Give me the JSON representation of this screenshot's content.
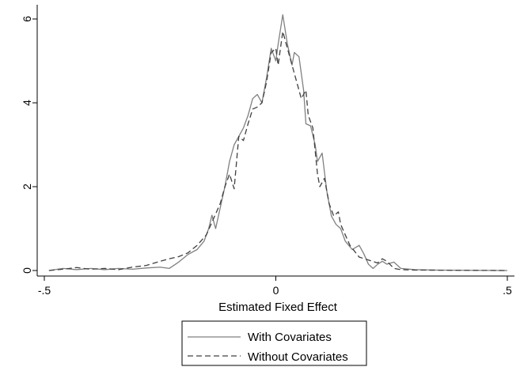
{
  "chart_data": {
    "type": "line",
    "title": "",
    "xlabel": "Estimated Fixed Effect",
    "ylabel": "",
    "xlim": [
      -0.5,
      0.5
    ],
    "ylim": [
      0,
      6.3
    ],
    "grid": false,
    "legend_position": "bottom",
    "x_ticks": [
      {
        "value": -0.5,
        "label": "-.5"
      },
      {
        "value": 0,
        "label": "0"
      },
      {
        "value": 0.5,
        "label": ".5"
      }
    ],
    "y_ticks": [
      {
        "value": 0,
        "label": "0"
      },
      {
        "value": 2,
        "label": "2"
      },
      {
        "value": 4,
        "label": "4"
      },
      {
        "value": 6,
        "label": "6"
      }
    ],
    "series": [
      {
        "name": "With Covariates",
        "color": "#808080",
        "dash": "solid",
        "points": [
          [
            -0.49,
            0.0
          ],
          [
            -0.46,
            0.05
          ],
          [
            -0.43,
            0.02
          ],
          [
            -0.4,
            0.05
          ],
          [
            -0.37,
            0.02
          ],
          [
            -0.34,
            0.05
          ],
          [
            -0.31,
            0.03
          ],
          [
            -0.28,
            0.06
          ],
          [
            -0.25,
            0.08
          ],
          [
            -0.23,
            0.05
          ],
          [
            -0.21,
            0.2
          ],
          [
            -0.19,
            0.38
          ],
          [
            -0.17,
            0.5
          ],
          [
            -0.155,
            0.7
          ],
          [
            -0.145,
            1.0
          ],
          [
            -0.138,
            1.32
          ],
          [
            -0.13,
            1.0
          ],
          [
            -0.12,
            1.5
          ],
          [
            -0.11,
            2.0
          ],
          [
            -0.1,
            2.6
          ],
          [
            -0.09,
            3.0
          ],
          [
            -0.08,
            3.2
          ],
          [
            -0.07,
            3.4
          ],
          [
            -0.06,
            3.7
          ],
          [
            -0.05,
            4.1
          ],
          [
            -0.04,
            4.2
          ],
          [
            -0.03,
            4.0
          ],
          [
            -0.02,
            4.6
          ],
          [
            -0.01,
            5.3
          ],
          [
            0.0,
            5.0
          ],
          [
            0.005,
            5.4
          ],
          [
            0.015,
            6.1
          ],
          [
            0.025,
            5.4
          ],
          [
            0.035,
            4.9
          ],
          [
            0.04,
            5.2
          ],
          [
            0.05,
            5.1
          ],
          [
            0.06,
            4.3
          ],
          [
            0.065,
            3.5
          ],
          [
            0.075,
            3.45
          ],
          [
            0.085,
            3.0
          ],
          [
            0.09,
            2.6
          ],
          [
            0.1,
            2.8
          ],
          [
            0.11,
            1.9
          ],
          [
            0.12,
            1.3
          ],
          [
            0.13,
            1.1
          ],
          [
            0.14,
            1.0
          ],
          [
            0.15,
            0.7
          ],
          [
            0.165,
            0.5
          ],
          [
            0.18,
            0.6
          ],
          [
            0.19,
            0.4
          ],
          [
            0.2,
            0.15
          ],
          [
            0.21,
            0.05
          ],
          [
            0.22,
            0.15
          ],
          [
            0.23,
            0.22
          ],
          [
            0.24,
            0.15
          ],
          [
            0.255,
            0.2
          ],
          [
            0.27,
            0.05
          ],
          [
            0.3,
            0.02
          ],
          [
            0.35,
            0.01
          ],
          [
            0.5,
            0.0
          ]
        ]
      },
      {
        "name": "Without Covariates",
        "color": "#404040",
        "dash": "dashed",
        "points": [
          [
            -0.49,
            0.0
          ],
          [
            -0.46,
            0.03
          ],
          [
            -0.43,
            0.07
          ],
          [
            -0.4,
            0.03
          ],
          [
            -0.37,
            0.05
          ],
          [
            -0.34,
            0.02
          ],
          [
            -0.31,
            0.08
          ],
          [
            -0.28,
            0.12
          ],
          [
            -0.25,
            0.22
          ],
          [
            -0.23,
            0.28
          ],
          [
            -0.21,
            0.33
          ],
          [
            -0.19,
            0.42
          ],
          [
            -0.17,
            0.6
          ],
          [
            -0.15,
            0.85
          ],
          [
            -0.14,
            1.1
          ],
          [
            -0.13,
            1.35
          ],
          [
            -0.12,
            1.6
          ],
          [
            -0.11,
            2.0
          ],
          [
            -0.1,
            2.3
          ],
          [
            -0.09,
            1.95
          ],
          [
            -0.08,
            3.2
          ],
          [
            -0.07,
            3.1
          ],
          [
            -0.06,
            3.5
          ],
          [
            -0.05,
            3.85
          ],
          [
            -0.04,
            3.9
          ],
          [
            -0.03,
            4.0
          ],
          [
            -0.02,
            4.5
          ],
          [
            -0.01,
            5.2
          ],
          [
            0.0,
            5.3
          ],
          [
            0.005,
            4.9
          ],
          [
            0.015,
            5.7
          ],
          [
            0.025,
            5.3
          ],
          [
            0.035,
            4.9
          ],
          [
            0.045,
            4.5
          ],
          [
            0.055,
            4.1
          ],
          [
            0.065,
            4.3
          ],
          [
            0.07,
            3.7
          ],
          [
            0.08,
            3.4
          ],
          [
            0.09,
            2.3
          ],
          [
            0.095,
            2.0
          ],
          [
            0.105,
            2.2
          ],
          [
            0.115,
            1.6
          ],
          [
            0.125,
            1.3
          ],
          [
            0.135,
            1.4
          ],
          [
            0.14,
            1.1
          ],
          [
            0.15,
            0.85
          ],
          [
            0.16,
            0.6
          ],
          [
            0.18,
            0.32
          ],
          [
            0.2,
            0.25
          ],
          [
            0.22,
            0.18
          ],
          [
            0.23,
            0.28
          ],
          [
            0.24,
            0.22
          ],
          [
            0.255,
            0.05
          ],
          [
            0.27,
            0.02
          ],
          [
            0.3,
            0.01
          ],
          [
            0.5,
            0.0
          ]
        ]
      }
    ]
  }
}
